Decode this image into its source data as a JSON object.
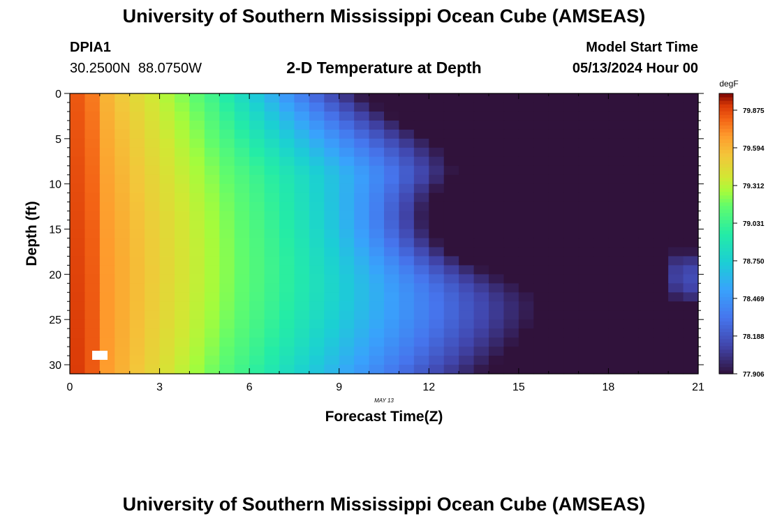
{
  "page": {
    "title_top": "University of Southern Mississippi Ocean Cube (AMSEAS)",
    "title_bottom": "University of Southern Mississippi Ocean Cube (AMSEAS)",
    "station_id": "DPIA1",
    "coordinates": "30.2500N  88.0750W",
    "plot_title": "2-D Temperature at Depth",
    "model_start_label": "Model Start Time",
    "model_start_value": "05/13/2024 Hour 00"
  },
  "chart_data": {
    "type": "heatmap",
    "title": "2-D Temperature at Depth",
    "xlabel": "Forecast Time(Z)",
    "ylabel": "Depth (ft)",
    "date_label": "MAY 13",
    "xlim": [
      0,
      21
    ],
    "ylim": [
      0,
      31
    ],
    "x_ticks": [
      0,
      3,
      6,
      9,
      12,
      15,
      18,
      21
    ],
    "y_ticks": [
      0,
      5,
      10,
      15,
      20,
      25,
      30
    ],
    "colorbar": {
      "unit": "degF",
      "min": 77.906,
      "max": 80.0,
      "tick_values": [
        79.875,
        79.594,
        79.312,
        79.031,
        78.75,
        78.469,
        78.188,
        77.906
      ],
      "tick_labels": [
        "79.875",
        "79.594",
        "79.312",
        "79.031",
        "78.750",
        "78.469",
        "78.188",
        "77.906"
      ]
    },
    "grid": {
      "n_time": 42,
      "n_depth": 31,
      "time_step_hours": 0.5,
      "depth_step_ft": 1
    }
  }
}
